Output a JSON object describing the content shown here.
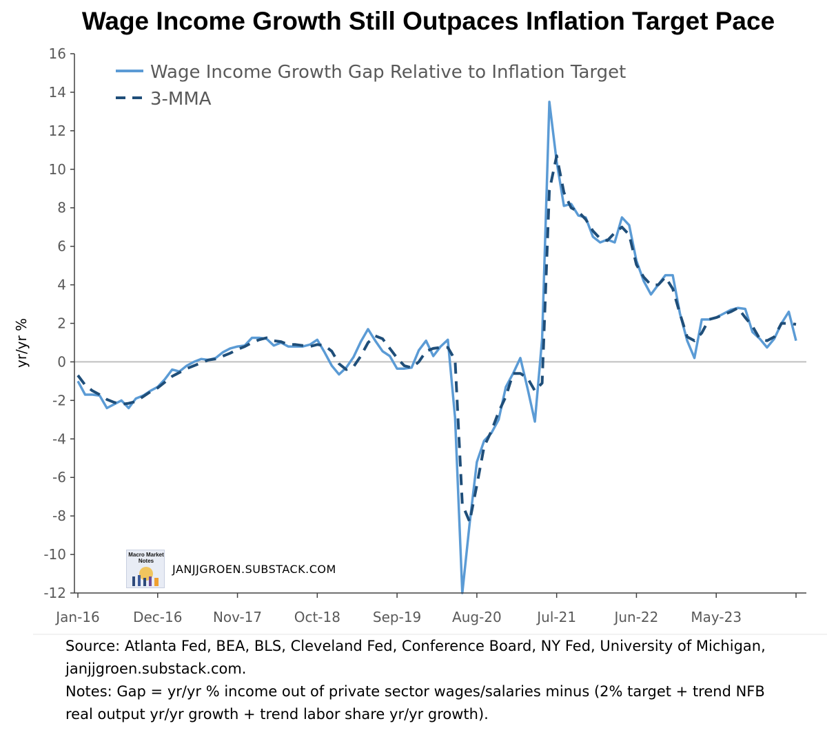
{
  "chart_data": {
    "type": "line",
    "title": "Wage Income Growth Still Outpaces Inflation Target Pace",
    "xlabel": "",
    "ylabel": "yr/yr %",
    "ylim": [
      -12,
      16
    ],
    "yticks": [
      -12,
      -10,
      -8,
      -6,
      -4,
      -2,
      0,
      2,
      4,
      6,
      8,
      10,
      12,
      14,
      16
    ],
    "xtick_labels": [
      "Jan-16",
      "Dec-16",
      "Nov-17",
      "Oct-18",
      "Sep-19",
      "Aug-20",
      "Jul-21",
      "Jun-22",
      "May-23"
    ],
    "xtick_every_months": 11,
    "start_month": "Jan-16",
    "legend_position": "top-left",
    "zero_line": true,
    "series": [
      {
        "name": "Wage Income Growth Gap Relative to Inflation Target",
        "style": "solid",
        "color": "#5b9bd5",
        "values": [
          -1.0,
          -1.7,
          -1.7,
          -1.75,
          -2.4,
          -2.2,
          -2.0,
          -2.4,
          -1.9,
          -1.75,
          -1.5,
          -1.3,
          -0.9,
          -0.4,
          -0.5,
          -0.2,
          0.0,
          0.15,
          0.1,
          0.2,
          0.5,
          0.7,
          0.8,
          0.85,
          1.25,
          1.25,
          1.2,
          0.85,
          1.0,
          0.8,
          0.8,
          0.8,
          0.9,
          1.15,
          0.5,
          -0.2,
          -0.65,
          -0.3,
          0.25,
          1.05,
          1.7,
          1.1,
          0.55,
          0.3,
          -0.35,
          -0.35,
          -0.3,
          0.6,
          1.1,
          0.3,
          0.8,
          1.15,
          -2.9,
          -12.0,
          -8.4,
          -5.2,
          -4.1,
          -3.7,
          -3.0,
          -1.3,
          -0.6,
          0.2,
          -1.4,
          -3.1,
          1.2,
          13.5,
          10.4,
          8.1,
          8.2,
          7.6,
          7.5,
          6.5,
          6.2,
          6.35,
          6.2,
          7.5,
          7.1,
          5.25,
          4.2,
          3.5,
          4.0,
          4.5,
          4.5,
          2.5,
          1.1,
          0.2,
          2.2,
          2.2,
          2.3,
          2.5,
          2.7,
          2.8,
          2.75,
          1.55,
          1.2,
          0.75,
          1.2,
          2.0,
          2.6,
          1.1
        ]
      },
      {
        "name": "3-MMA",
        "style": "dashed",
        "color": "#1f4e79",
        "values": [
          -0.7,
          -1.2,
          -1.5,
          -1.7,
          -1.95,
          -2.1,
          -2.2,
          -2.15,
          -2.05,
          -1.8,
          -1.55,
          -1.35,
          -1.05,
          -0.75,
          -0.55,
          -0.35,
          -0.2,
          -0.05,
          0.1,
          0.15,
          0.3,
          0.45,
          0.65,
          0.8,
          1.0,
          1.15,
          1.25,
          1.1,
          1.05,
          0.9,
          0.9,
          0.85,
          0.8,
          0.9,
          0.85,
          0.55,
          -0.1,
          -0.4,
          -0.25,
          0.3,
          1.0,
          1.35,
          1.2,
          0.7,
          0.2,
          -0.2,
          -0.3,
          0.0,
          0.55,
          0.7,
          0.75,
          0.75,
          0.1,
          -7.4,
          -8.3,
          -6.4,
          -4.4,
          -3.6,
          -2.6,
          -1.8,
          -0.6,
          -0.6,
          -0.85,
          -1.5,
          -1.1,
          8.9,
          10.7,
          8.8,
          8.0,
          7.8,
          7.4,
          6.8,
          6.4,
          6.3,
          6.7,
          7.0,
          6.6,
          5.05,
          4.4,
          4.0,
          4.0,
          4.4,
          3.8,
          2.5,
          1.3,
          1.1,
          1.5,
          2.2,
          2.3,
          2.45,
          2.6,
          2.8,
          2.3,
          1.85,
          1.2,
          1.1,
          1.3,
          2.0,
          2.0,
          1.95
        ]
      }
    ]
  },
  "watermark": {
    "text": "JANJJGROEN.SUBSTACK.COM",
    "logo_text": "Macro Market Notes"
  },
  "footer": {
    "source_line1": "Source: Atlanta Fed, BEA, BLS, Cleveland Fed, Conference Board, NY Fed, University of Michigan,",
    "source_line2": "janjjgroen.substack.com.",
    "notes_line1": "Notes: Gap = yr/yr % income out of private sector wages/salaries minus (2% target + trend NFB",
    "notes_line2": "real output yr/yr growth + trend labor share yr/yr growth)."
  },
  "colors": {
    "series_light": "#5b9bd5",
    "series_dark": "#1f4e79",
    "zero_line": "#bfbfbf",
    "axis": "#404040",
    "tick_text": "#595959"
  }
}
